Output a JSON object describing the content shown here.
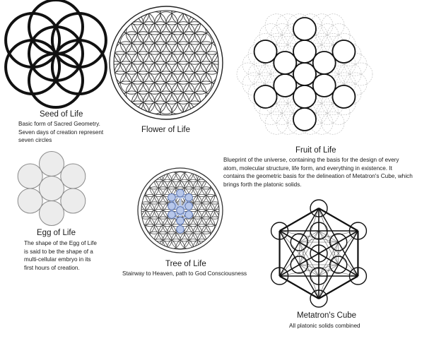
{
  "seed_of_life": {
    "title": "Seed of Life",
    "description": [
      "Basic form of Sacred Geometry.",
      "Seven days of creation represent",
      "seven circles"
    ]
  },
  "flower_of_life": {
    "title": "Flower of Life"
  },
  "fruit_of_life": {
    "title": "Fruit of Life",
    "description": [
      "Blueprint of the universe, containing the basis for the design of every",
      "atom, molecular structure, life form, and everything in existence. It",
      "contains the geometric basis for the delineation of Metatron's Cube, which",
      "brings forth the platonic solids."
    ]
  },
  "egg_of_life": {
    "title": "Egg of Life",
    "description": [
      "The shape of the Egg of Life",
      "is said to be the shape of a",
      "multi-cellular embryo in its",
      "first hours of creation."
    ]
  },
  "tree_of_life": {
    "title": "Tree of Life",
    "description": "Stairway to Heaven, path to God Consciousness",
    "node_color": "#b7c7ea"
  },
  "metatrons_cube": {
    "title": "Metatron's Cube",
    "description": "All platonic solids combined"
  }
}
